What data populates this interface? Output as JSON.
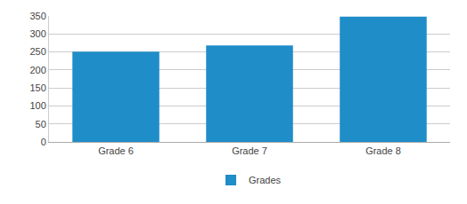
{
  "chart_data": {
    "type": "bar",
    "categories": [
      "Grade 6",
      "Grade 7",
      "Grade 8"
    ],
    "series": [
      {
        "name": "Grades",
        "color": "#1f8dc8",
        "values": [
          251,
          268,
          348
        ]
      }
    ],
    "ylim": [
      0,
      350
    ],
    "yticks": [
      0,
      50,
      100,
      150,
      200,
      250,
      300,
      350
    ],
    "grid": true,
    "legend": "bottom"
  }
}
